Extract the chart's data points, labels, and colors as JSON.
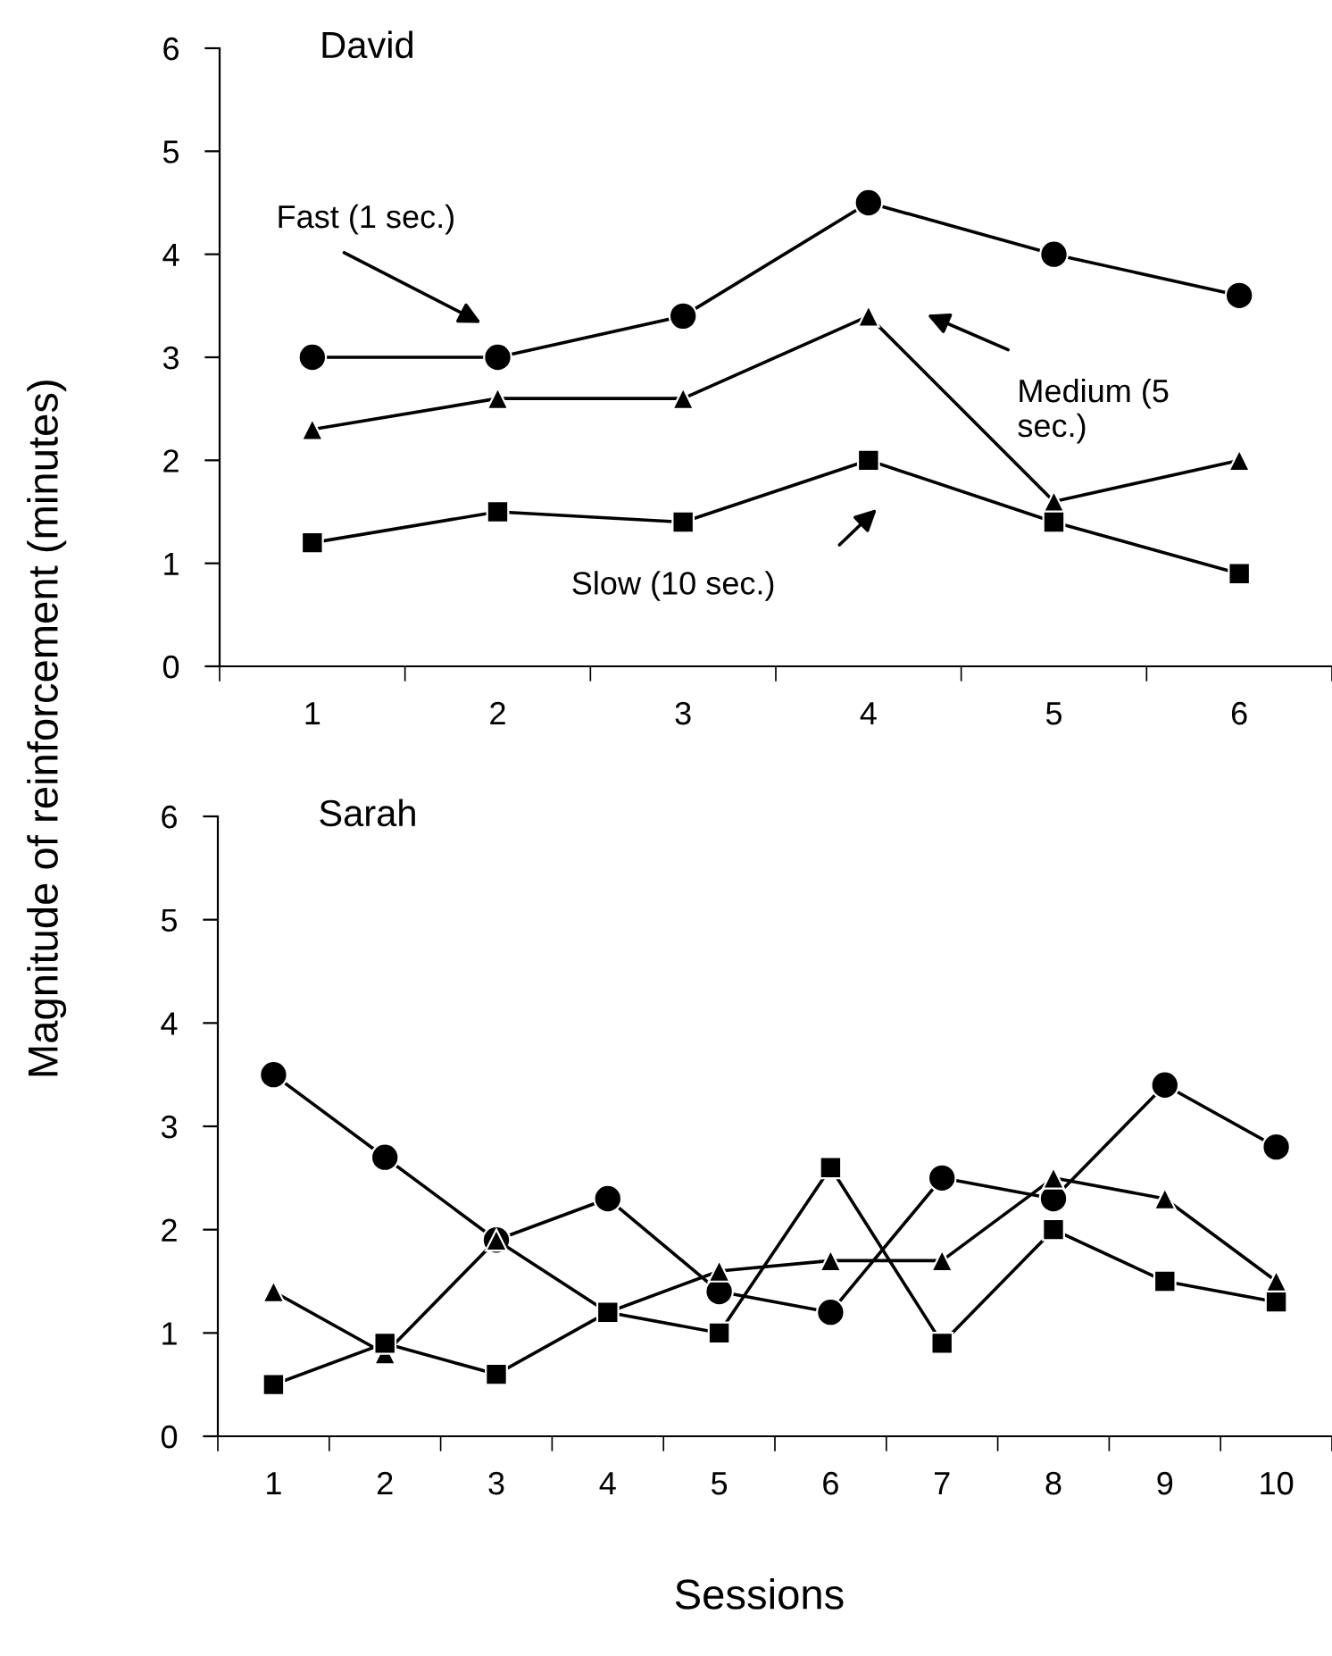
{
  "chart_data": [
    {
      "type": "line",
      "title": "David",
      "ylabel": "Magnitude of reinforcement (minutes)",
      "categories": [
        "1",
        "2",
        "3",
        "4",
        "5",
        "6"
      ],
      "ylim": [
        0,
        6
      ],
      "yticks": [
        0,
        1,
        2,
        3,
        4,
        5,
        6
      ],
      "grid": false,
      "legend": false,
      "series": [
        {
          "color": "#000000",
          "marker": "circle",
          "values": [
            3.0,
            3.0,
            3.4,
            4.5,
            4.0,
            3.6
          ]
        },
        {
          "color": "#000000",
          "marker": "triangle",
          "values": [
            2.3,
            2.6,
            2.6,
            3.4,
            1.6,
            2.0
          ]
        },
        {
          "color": "#000000",
          "marker": "square",
          "values": [
            1.2,
            1.5,
            1.4,
            2.0,
            1.4,
            0.9
          ]
        }
      ],
      "annotations": [
        "Fast (1 sec.)",
        "Medium (5\nsec.)",
        "Slow (10 sec.)"
      ]
    },
    {
      "type": "line",
      "title": "Sarah",
      "xlabel": "Sessions",
      "categories": [
        "1",
        "2",
        "3",
        "4",
        "5",
        "6",
        "7",
        "8",
        "9",
        "10"
      ],
      "ylim": [
        0,
        6
      ],
      "yticks": [
        0,
        1,
        2,
        3,
        4,
        5,
        6
      ],
      "grid": false,
      "legend": false,
      "series": [
        {
          "color": "#000000",
          "marker": "circle",
          "values": [
            3.5,
            2.7,
            1.9,
            2.3,
            1.4,
            1.2,
            2.5,
            2.3,
            3.4,
            2.8
          ]
        },
        {
          "color": "#000000",
          "marker": "triangle",
          "values": [
            1.4,
            0.8,
            1.9,
            1.2,
            1.6,
            1.7,
            1.7,
            2.5,
            2.3,
            1.5
          ]
        },
        {
          "color": "#000000",
          "marker": "square",
          "values": [
            0.5,
            0.9,
            0.6,
            1.2,
            1.0,
            2.6,
            0.9,
            2.0,
            1.5,
            1.3
          ]
        }
      ]
    }
  ]
}
